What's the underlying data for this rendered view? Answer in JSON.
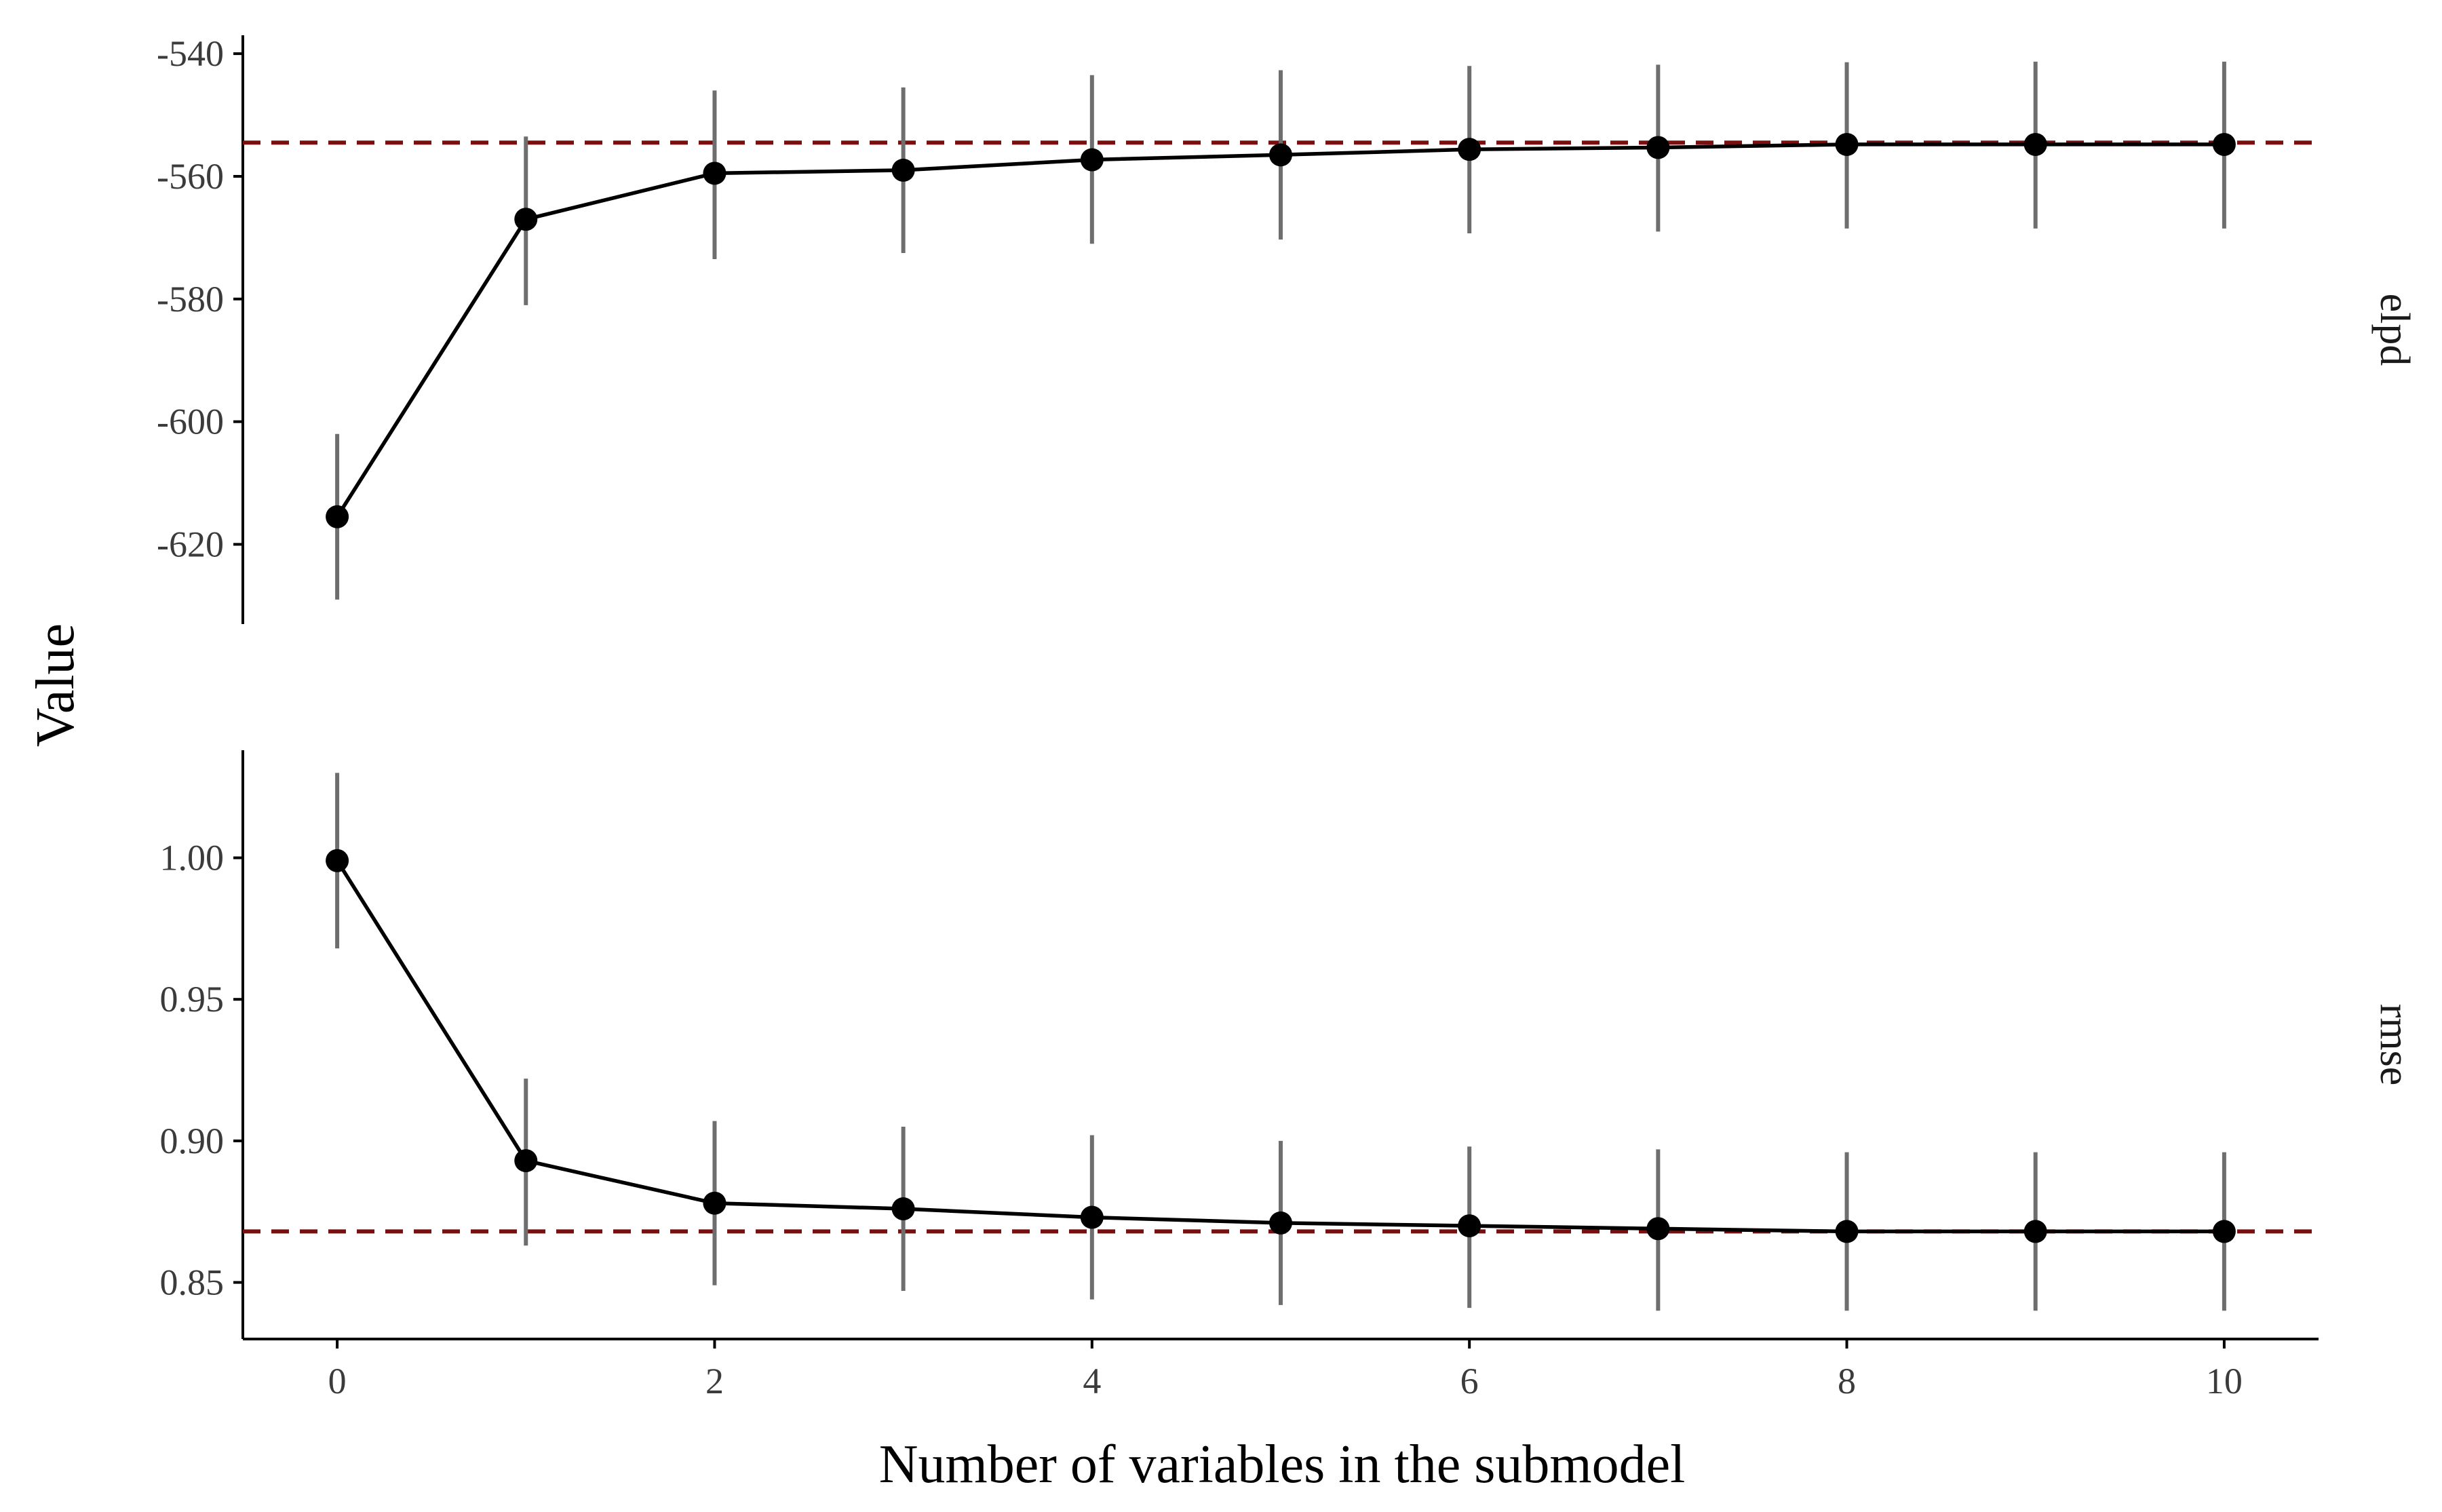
{
  "chart_data": {
    "type": "line",
    "xlabel": "Number of variables in the submodel",
    "ylabel": "Value",
    "x": [
      0,
      1,
      2,
      3,
      4,
      5,
      6,
      7,
      8,
      9,
      10
    ],
    "xticks": [
      "0",
      "2",
      "4",
      "6",
      "8",
      "10"
    ],
    "xticks_values": [
      0,
      2,
      4,
      6,
      8,
      10
    ],
    "xlim": [
      -0.5,
      10.5
    ],
    "grid": false,
    "legend": "none",
    "colors": {
      "line": "#000000",
      "point": "#000000",
      "errorbar": "#6e6e6e",
      "reference": "#7b0f0f"
    },
    "panels": [
      {
        "label": "elpd",
        "ylim": [
          -633,
          -537
        ],
        "yticks": [
          "-540",
          "-560",
          "-580",
          "-600",
          "-620"
        ],
        "yticks_values": [
          -540,
          -560,
          -580,
          -600,
          -620
        ],
        "reference_value": -554.5,
        "series": [
          {
            "values": [
              -615.5,
              -567.0,
              -559.5,
              -559.0,
              -557.3,
              -556.5,
              -555.6,
              -555.3,
              -554.8,
              -554.8,
              -554.8
            ],
            "lower": [
              -629.0,
              -581.0,
              -573.5,
              -572.5,
              -571.0,
              -570.3,
              -569.3,
              -569.0,
              -568.5,
              -568.5,
              -568.5
            ],
            "upper": [
              -602.0,
              -553.5,
              -546.0,
              -545.5,
              -543.5,
              -542.7,
              -542.0,
              -541.8,
              -541.4,
              -541.3,
              -541.3
            ]
          }
        ]
      },
      {
        "label": "rmse",
        "ylim": [
          0.83,
          1.038
        ],
        "yticks": [
          "1.00",
          "0.95",
          "0.90",
          "0.85"
        ],
        "yticks_values": [
          1.0,
          0.95,
          0.9,
          0.85
        ],
        "reference_value": 0.868,
        "series": [
          {
            "values": [
              0.999,
              0.893,
              0.878,
              0.876,
              0.873,
              0.871,
              0.87,
              0.869,
              0.868,
              0.868,
              0.868
            ],
            "lower": [
              0.968,
              0.863,
              0.849,
              0.847,
              0.844,
              0.842,
              0.841,
              0.84,
              0.84,
              0.84,
              0.84
            ],
            "upper": [
              1.03,
              0.922,
              0.907,
              0.905,
              0.902,
              0.9,
              0.898,
              0.897,
              0.896,
              0.896,
              0.896
            ]
          }
        ]
      }
    ]
  }
}
